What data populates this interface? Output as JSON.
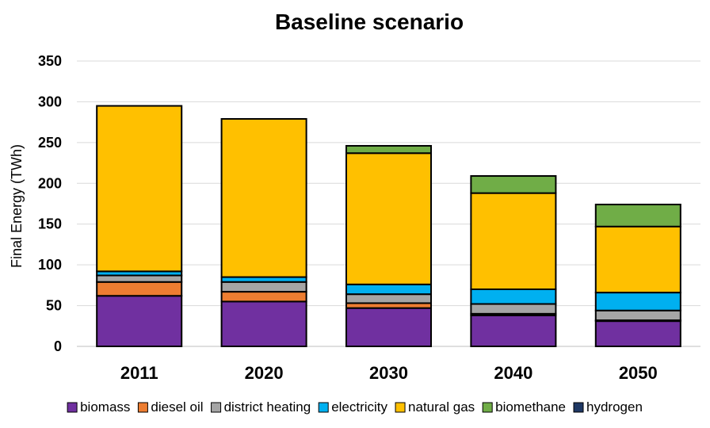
{
  "chart_data": {
    "type": "bar",
    "stacked": true,
    "title": "Baseline scenario",
    "xlabel": "",
    "ylabel": "Final Energy (TWh)",
    "ylim": [
      0,
      350
    ],
    "yticks": [
      0,
      50,
      100,
      150,
      200,
      250,
      300,
      350
    ],
    "grid": true,
    "legend_position": "bottom",
    "categories": [
      "2011",
      "2020",
      "2030",
      "2040",
      "2050"
    ],
    "series": [
      {
        "name": "biomass",
        "color": "#7030a0",
        "values": [
          62,
          55,
          47,
          38,
          31
        ]
      },
      {
        "name": "diesel oil",
        "color": "#ed7d31",
        "values": [
          17,
          12,
          6,
          2,
          1
        ]
      },
      {
        "name": "district heating",
        "color": "#a5a5a5",
        "values": [
          8,
          12,
          11,
          12,
          12
        ]
      },
      {
        "name": "electricity",
        "color": "#00b0f0",
        "values": [
          5,
          6,
          12,
          18,
          22
        ]
      },
      {
        "name": "natural gas",
        "color": "#ffc000",
        "values": [
          203,
          194,
          161,
          118,
          81
        ]
      },
      {
        "name": "biomethane",
        "color": "#70ad47",
        "values": [
          0,
          0,
          9,
          21,
          27
        ]
      },
      {
        "name": "hydrogen",
        "color": "#1f3864",
        "values": [
          0,
          0,
          0,
          0,
          0
        ]
      }
    ]
  }
}
